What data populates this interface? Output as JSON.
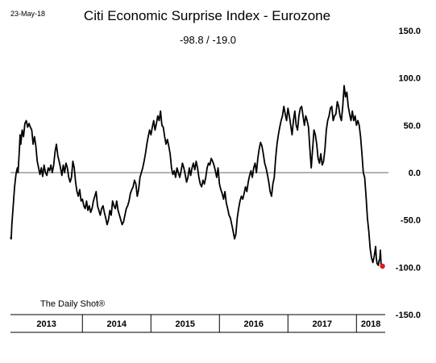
{
  "chart_data": {
    "type": "line",
    "date_label": "23-May-18",
    "title": "Citi Economic Surprise Index - Eurozone",
    "subtitle": "-98.8  /  -19.0",
    "source": "The Daily Shot®",
    "y_axis": {
      "side": "right",
      "range": [
        -150,
        150
      ],
      "ticks": [
        150,
        100,
        50,
        0,
        -50,
        -100,
        -150
      ],
      "tick_labels": [
        "150.0",
        "100.0",
        "50.0",
        "0.0",
        "-50.0",
        "-100.0",
        "-150.0"
      ],
      "zero_line": true
    },
    "x_axis": {
      "range": [
        2012.95,
        2018.42
      ],
      "year_labels": [
        "2013",
        "2014",
        "2015",
        "2016",
        "2017",
        "2018"
      ],
      "year_separators": [
        2014,
        2015,
        2016,
        2017,
        2018
      ]
    },
    "colors": {
      "line": "#000000",
      "last_point": "#e11b1b",
      "zero_line": "#666666"
    },
    "series": [
      {
        "points": [
          [
            2012.95,
            -68
          ],
          [
            2012.96,
            -70
          ],
          [
            2012.97,
            -55
          ],
          [
            2012.99,
            -35
          ],
          [
            2013.01,
            -15
          ],
          [
            2013.03,
            -2
          ],
          [
            2013.05,
            5
          ],
          [
            2013.06,
            0
          ],
          [
            2013.08,
            25
          ],
          [
            2013.09,
            40
          ],
          [
            2013.1,
            30
          ],
          [
            2013.12,
            45
          ],
          [
            2013.14,
            38
          ],
          [
            2013.16,
            52
          ],
          [
            2013.18,
            55
          ],
          [
            2013.2,
            48
          ],
          [
            2013.22,
            52
          ],
          [
            2013.24,
            48
          ],
          [
            2013.26,
            45
          ],
          [
            2013.28,
            30
          ],
          [
            2013.3,
            38
          ],
          [
            2013.32,
            28
          ],
          [
            2013.34,
            12
          ],
          [
            2013.36,
            5
          ],
          [
            2013.38,
            -2
          ],
          [
            2013.4,
            5
          ],
          [
            2013.42,
            -4
          ],
          [
            2013.44,
            8
          ],
          [
            2013.46,
            0
          ],
          [
            2013.48,
            -3
          ],
          [
            2013.5,
            5
          ],
          [
            2013.52,
            2
          ],
          [
            2013.54,
            8
          ],
          [
            2013.56,
            0
          ],
          [
            2013.58,
            8
          ],
          [
            2013.6,
            22
          ],
          [
            2013.62,
            30
          ],
          [
            2013.64,
            18
          ],
          [
            2013.66,
            12
          ],
          [
            2013.68,
            5
          ],
          [
            2013.7,
            -3
          ],
          [
            2013.72,
            8
          ],
          [
            2013.74,
            0
          ],
          [
            2013.76,
            10
          ],
          [
            2013.78,
            5
          ],
          [
            2013.8,
            -5
          ],
          [
            2013.82,
            -10
          ],
          [
            2013.84,
            -5
          ],
          [
            2013.86,
            12
          ],
          [
            2013.88,
            5
          ],
          [
            2013.9,
            -10
          ],
          [
            2013.92,
            -20
          ],
          [
            2013.94,
            -25
          ],
          [
            2013.96,
            -18
          ],
          [
            2013.98,
            -30
          ],
          [
            2014,
            -28
          ],
          [
            2014.02,
            -35
          ],
          [
            2014.04,
            -38
          ],
          [
            2014.06,
            -30
          ],
          [
            2014.08,
            -40
          ],
          [
            2014.1,
            -35
          ],
          [
            2014.12,
            -42
          ],
          [
            2014.14,
            -38
          ],
          [
            2014.16,
            -30
          ],
          [
            2014.18,
            -25
          ],
          [
            2014.2,
            -20
          ],
          [
            2014.22,
            -35
          ],
          [
            2014.24,
            -40
          ],
          [
            2014.26,
            -45
          ],
          [
            2014.28,
            -38
          ],
          [
            2014.3,
            -35
          ],
          [
            2014.32,
            -42
          ],
          [
            2014.34,
            -48
          ],
          [
            2014.36,
            -55
          ],
          [
            2014.38,
            -50
          ],
          [
            2014.4,
            -40
          ],
          [
            2014.42,
            -45
          ],
          [
            2014.44,
            -30
          ],
          [
            2014.46,
            -35
          ],
          [
            2014.48,
            -38
          ],
          [
            2014.5,
            -30
          ],
          [
            2014.52,
            -40
          ],
          [
            2014.54,
            -45
          ],
          [
            2014.56,
            -50
          ],
          [
            2014.58,
            -55
          ],
          [
            2014.6,
            -52
          ],
          [
            2014.62,
            -45
          ],
          [
            2014.64,
            -38
          ],
          [
            2014.66,
            -35
          ],
          [
            2014.68,
            -30
          ],
          [
            2014.7,
            -22
          ],
          [
            2014.72,
            -18
          ],
          [
            2014.74,
            -15
          ],
          [
            2014.76,
            -8
          ],
          [
            2014.78,
            -12
          ],
          [
            2014.8,
            -25
          ],
          [
            2014.82,
            -18
          ],
          [
            2014.84,
            -5
          ],
          [
            2014.86,
            0
          ],
          [
            2014.88,
            5
          ],
          [
            2014.9,
            12
          ],
          [
            2014.92,
            20
          ],
          [
            2014.94,
            30
          ],
          [
            2014.96,
            38
          ],
          [
            2014.98,
            45
          ],
          [
            2015,
            40
          ],
          [
            2015.02,
            48
          ],
          [
            2015.04,
            55
          ],
          [
            2015.06,
            45
          ],
          [
            2015.08,
            52
          ],
          [
            2015.1,
            60
          ],
          [
            2015.12,
            55
          ],
          [
            2015.14,
            65
          ],
          [
            2015.16,
            50
          ],
          [
            2015.18,
            48
          ],
          [
            2015.2,
            38
          ],
          [
            2015.22,
            30
          ],
          [
            2015.24,
            35
          ],
          [
            2015.26,
            28
          ],
          [
            2015.28,
            20
          ],
          [
            2015.3,
            5
          ],
          [
            2015.32,
            -2
          ],
          [
            2015.34,
            2
          ],
          [
            2015.36,
            -5
          ],
          [
            2015.38,
            5
          ],
          [
            2015.4,
            0
          ],
          [
            2015.42,
            -5
          ],
          [
            2015.44,
            2
          ],
          [
            2015.46,
            10
          ],
          [
            2015.48,
            5
          ],
          [
            2015.5,
            -2
          ],
          [
            2015.52,
            -10
          ],
          [
            2015.54,
            -5
          ],
          [
            2015.56,
            5
          ],
          [
            2015.58,
            -3
          ],
          [
            2015.6,
            5
          ],
          [
            2015.62,
            10
          ],
          [
            2015.64,
            3
          ],
          [
            2015.66,
            12
          ],
          [
            2015.68,
            5
          ],
          [
            2015.7,
            -5
          ],
          [
            2015.72,
            -12
          ],
          [
            2015.74,
            -15
          ],
          [
            2015.76,
            -8
          ],
          [
            2015.78,
            -12
          ],
          [
            2015.8,
            -5
          ],
          [
            2015.82,
            5
          ],
          [
            2015.84,
            10
          ],
          [
            2015.86,
            8
          ],
          [
            2015.88,
            15
          ],
          [
            2015.9,
            12
          ],
          [
            2015.92,
            8
          ],
          [
            2015.94,
            2
          ],
          [
            2015.96,
            -5
          ],
          [
            2015.98,
            5
          ],
          [
            2016,
            -12
          ],
          [
            2016.02,
            -18
          ],
          [
            2016.04,
            -22
          ],
          [
            2016.06,
            -28
          ],
          [
            2016.08,
            -20
          ],
          [
            2016.1,
            -32
          ],
          [
            2016.12,
            -38
          ],
          [
            2016.14,
            -45
          ],
          [
            2016.16,
            -48
          ],
          [
            2016.18,
            -55
          ],
          [
            2016.2,
            -62
          ],
          [
            2016.22,
            -70
          ],
          [
            2016.24,
            -65
          ],
          [
            2016.26,
            -48
          ],
          [
            2016.28,
            -38
          ],
          [
            2016.3,
            -30
          ],
          [
            2016.32,
            -25
          ],
          [
            2016.34,
            -28
          ],
          [
            2016.36,
            -22
          ],
          [
            2016.38,
            -15
          ],
          [
            2016.4,
            -20
          ],
          [
            2016.42,
            -10
          ],
          [
            2016.44,
            -3
          ],
          [
            2016.46,
            2
          ],
          [
            2016.48,
            -5
          ],
          [
            2016.5,
            5
          ],
          [
            2016.52,
            10
          ],
          [
            2016.54,
            0
          ],
          [
            2016.56,
            15
          ],
          [
            2016.58,
            25
          ],
          [
            2016.6,
            32
          ],
          [
            2016.62,
            28
          ],
          [
            2016.64,
            20
          ],
          [
            2016.66,
            10
          ],
          [
            2016.68,
            5
          ],
          [
            2016.7,
            -2
          ],
          [
            2016.72,
            -10
          ],
          [
            2016.74,
            -20
          ],
          [
            2016.76,
            -25
          ],
          [
            2016.78,
            -12
          ],
          [
            2016.8,
            -5
          ],
          [
            2016.82,
            15
          ],
          [
            2016.84,
            30
          ],
          [
            2016.86,
            40
          ],
          [
            2016.88,
            48
          ],
          [
            2016.9,
            55
          ],
          [
            2016.92,
            60
          ],
          [
            2016.94,
            70
          ],
          [
            2016.96,
            62
          ],
          [
            2016.98,
            55
          ],
          [
            2017,
            68
          ],
          [
            2017.02,
            60
          ],
          [
            2017.04,
            50
          ],
          [
            2017.06,
            40
          ],
          [
            2017.08,
            55
          ],
          [
            2017.1,
            65
          ],
          [
            2017.12,
            50
          ],
          [
            2017.14,
            45
          ],
          [
            2017.16,
            60
          ],
          [
            2017.18,
            68
          ],
          [
            2017.2,
            70
          ],
          [
            2017.22,
            60
          ],
          [
            2017.24,
            50
          ],
          [
            2017.26,
            60
          ],
          [
            2017.28,
            55
          ],
          [
            2017.3,
            48
          ],
          [
            2017.32,
            25
          ],
          [
            2017.34,
            5
          ],
          [
            2017.36,
            25
          ],
          [
            2017.38,
            45
          ],
          [
            2017.4,
            40
          ],
          [
            2017.42,
            30
          ],
          [
            2017.44,
            15
          ],
          [
            2017.46,
            10
          ],
          [
            2017.48,
            20
          ],
          [
            2017.5,
            8
          ],
          [
            2017.52,
            12
          ],
          [
            2017.54,
            25
          ],
          [
            2017.56,
            45
          ],
          [
            2017.58,
            55
          ],
          [
            2017.6,
            60
          ],
          [
            2017.62,
            68
          ],
          [
            2017.64,
            70
          ],
          [
            2017.66,
            55
          ],
          [
            2017.68,
            60
          ],
          [
            2017.7,
            62
          ],
          [
            2017.72,
            75
          ],
          [
            2017.74,
            70
          ],
          [
            2017.76,
            60
          ],
          [
            2017.78,
            55
          ],
          [
            2017.8,
            70
          ],
          [
            2017.82,
            92
          ],
          [
            2017.84,
            80
          ],
          [
            2017.86,
            85
          ],
          [
            2017.88,
            70
          ],
          [
            2017.9,
            62
          ],
          [
            2017.92,
            55
          ],
          [
            2017.94,
            65
          ],
          [
            2017.96,
            55
          ],
          [
            2017.98,
            60
          ],
          [
            2018,
            50
          ],
          [
            2018.02,
            55
          ],
          [
            2018.04,
            50
          ],
          [
            2018.06,
            38
          ],
          [
            2018.08,
            20
          ],
          [
            2018.1,
            0
          ],
          [
            2018.12,
            -5
          ],
          [
            2018.14,
            -25
          ],
          [
            2018.16,
            -48
          ],
          [
            2018.18,
            -62
          ],
          [
            2018.2,
            -80
          ],
          [
            2018.22,
            -90
          ],
          [
            2018.24,
            -95
          ],
          [
            2018.26,
            -88
          ],
          [
            2018.28,
            -78
          ],
          [
            2018.29,
            -90
          ],
          [
            2018.3,
            -96
          ],
          [
            2018.32,
            -98
          ],
          [
            2018.33,
            -93
          ],
          [
            2018.34,
            -92
          ],
          [
            2018.35,
            -82
          ],
          [
            2018.36,
            -98
          ],
          [
            2018.37,
            -99
          ],
          [
            2018.38,
            -98.8
          ]
        ]
      }
    ],
    "last_value": [
      2018.38,
      -98.8
    ]
  }
}
